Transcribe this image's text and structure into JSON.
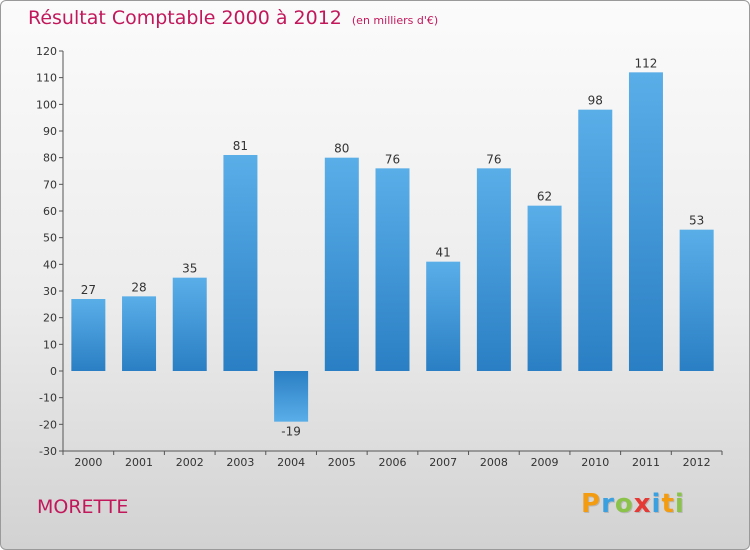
{
  "header": {
    "title": "Résultat Comptable 2000 à 2012",
    "unit": "(en milliers d'€)"
  },
  "footer": {
    "commune": "MORETTE",
    "logo_letters": [
      "P",
      "r",
      "o",
      "x",
      "i",
      "t",
      "i"
    ],
    "logo_colors": [
      "#f39c12",
      "#3aa0e0",
      "#8bc34a",
      "#e53935",
      "#3aa0e0",
      "#f39c12",
      "#8bc34a"
    ]
  },
  "colors": {
    "title": "#c2185b",
    "bar_light": "#5aaee8",
    "bar_dark": "#2a7fc4"
  },
  "chart_data": {
    "type": "bar",
    "title": "Résultat Comptable 2000 à 2012",
    "xlabel": "",
    "ylabel": "",
    "categories": [
      "2000",
      "2001",
      "2002",
      "2003",
      "2004",
      "2005",
      "2006",
      "2007",
      "2008",
      "2009",
      "2010",
      "2011",
      "2012"
    ],
    "values": [
      27,
      28,
      35,
      81,
      -19,
      80,
      76,
      41,
      76,
      62,
      98,
      112,
      53
    ],
    "ylim": [
      -30,
      120
    ],
    "yticks": [
      -30,
      -20,
      -10,
      0,
      10,
      20,
      30,
      40,
      50,
      60,
      70,
      80,
      90,
      100,
      110,
      120
    ],
    "grid": false,
    "legend": "none"
  }
}
